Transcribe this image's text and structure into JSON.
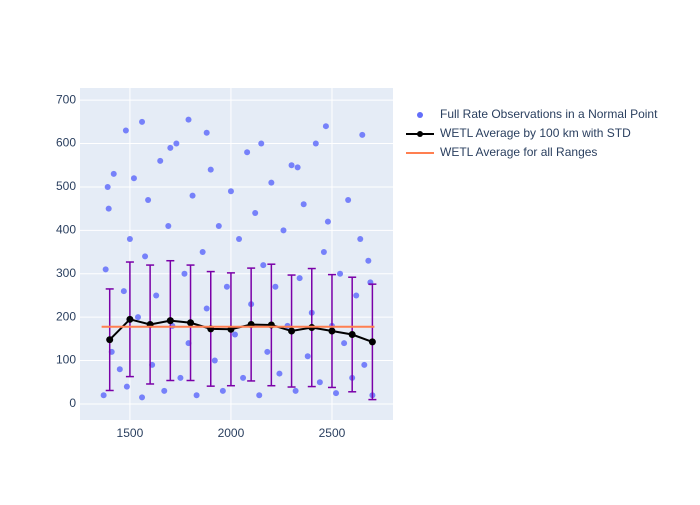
{
  "chart_data": {
    "type": "scatter",
    "xlim": [
      1253,
      2802
    ],
    "ylim": [
      -37,
      728
    ],
    "xticks": [
      1500,
      2000,
      2500
    ],
    "yticks": [
      0,
      100,
      200,
      300,
      400,
      500,
      600,
      700
    ],
    "grid": true,
    "legend": "right",
    "series": [
      {
        "name": "Full Rate Observations in a Normal Point",
        "color": "#636efa",
        "type": "scatter",
        "x": [
          1370,
          1380,
          1395,
          1410,
          1420,
          1450,
          1470,
          1485,
          1500,
          1520,
          1540,
          1560,
          1575,
          1590,
          1610,
          1630,
          1650,
          1670,
          1690,
          1710,
          1730,
          1750,
          1770,
          1790,
          1810,
          1830,
          1860,
          1880,
          1900,
          1920,
          1940,
          1960,
          1980,
          2000,
          2020,
          2040,
          2060,
          2080,
          2100,
          2120,
          2140,
          2160,
          2180,
          2200,
          2220,
          2240,
          2260,
          2280,
          2300,
          2320,
          2340,
          2360,
          2380,
          2400,
          2420,
          2440,
          2460,
          2480,
          2500,
          2520,
          2540,
          2560,
          2580,
          2600,
          2620,
          2640,
          2660,
          2680,
          2700,
          1390,
          1480,
          1560,
          1700,
          1790,
          1880,
          2150,
          2330,
          2470,
          2650,
          2690
        ],
        "values": [
          20,
          310,
          450,
          120,
          530,
          80,
          260,
          40,
          380,
          520,
          200,
          15,
          340,
          470,
          90,
          250,
          560,
          30,
          410,
          180,
          600,
          60,
          300,
          140,
          480,
          20,
          350,
          220,
          540,
          100,
          410,
          30,
          270,
          490,
          160,
          380,
          60,
          580,
          230,
          440,
          20,
          320,
          120,
          510,
          270,
          70,
          400,
          180,
          550,
          30,
          290,
          460,
          110,
          210,
          600,
          50,
          350,
          420,
          180,
          25,
          300,
          140,
          470,
          60,
          250,
          380,
          90,
          330,
          20,
          500,
          630,
          650,
          590,
          655,
          625,
          600,
          545,
          640,
          620,
          280
        ]
      },
      {
        "name": "WETL Average by 100 km with STD",
        "color": "#000000",
        "error_color": "#7a00a8",
        "type": "line",
        "x": [
          1400,
          1500,
          1600,
          1700,
          1800,
          1900,
          2000,
          2100,
          2200,
          2300,
          2400,
          2500,
          2600,
          2700
        ],
        "values": [
          148,
          195,
          183,
          192,
          187,
          173,
          172,
          183,
          182,
          168,
          176,
          168,
          160,
          143
        ],
        "error": [
          117,
          132,
          137,
          138,
          133,
          132,
          130,
          130,
          140,
          129,
          136,
          130,
          132,
          133
        ]
      },
      {
        "name": "WETL Average for all Ranges",
        "color": "#ff7f50",
        "type": "hline",
        "x": [
          1360,
          2710
        ],
        "values": [
          178,
          178
        ]
      }
    ]
  }
}
